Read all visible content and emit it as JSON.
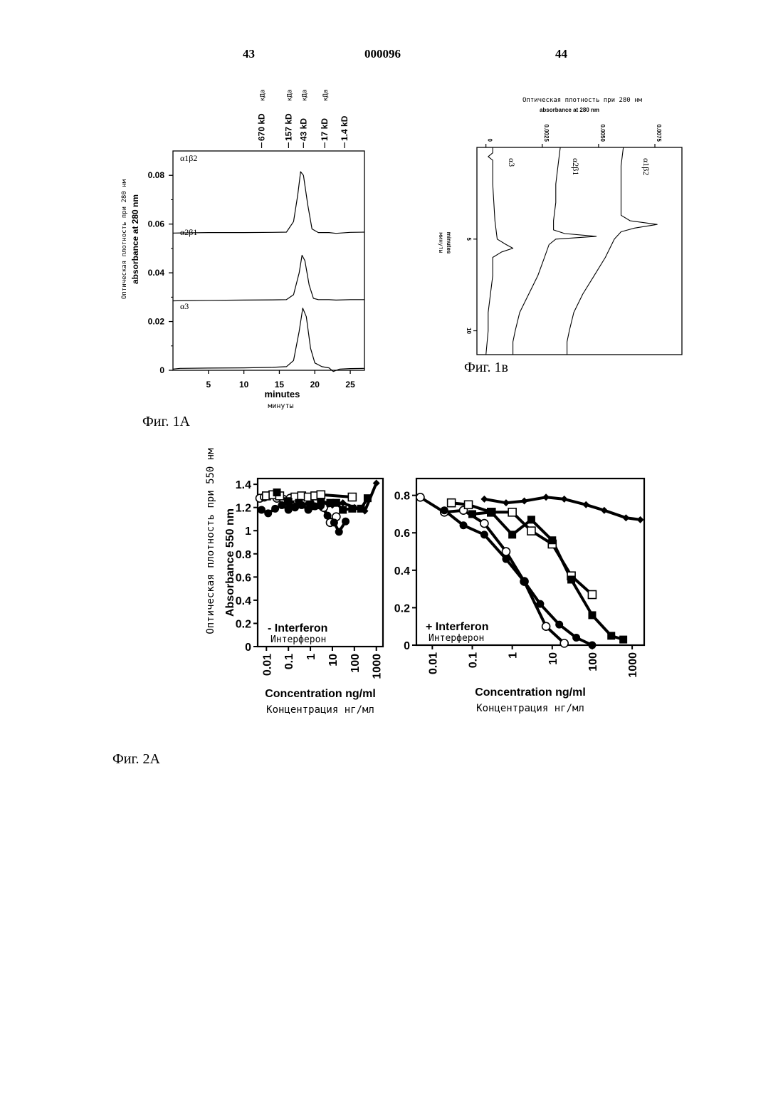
{
  "header": {
    "left_page": "43",
    "patent_number": "000096",
    "right_page": "44"
  },
  "captions": {
    "fig1a": "Фиг. 1А",
    "fig1b": "Фиг. 1в",
    "fig2a": "Фиг. 2А"
  },
  "chart_data": [
    {
      "id": "fig1a",
      "type": "line",
      "ylabel_ru": "Оптическая плотность при 280 нм",
      "ylabel": "absorbance at 280 nm",
      "xlabel": "minutes",
      "xlabel_ru": "минуты",
      "xlim": [
        0,
        27
      ],
      "ylim": [
        0,
        0.09
      ],
      "xticks": [
        5,
        10,
        15,
        20,
        25
      ],
      "yticks": [
        0,
        0.02,
        0.04,
        0.06,
        0.08
      ],
      "ytick_labels": [
        "0",
        "0.02",
        "0.04",
        "0.06",
        "0.08"
      ],
      "markers": [
        {
          "label": "670 kD",
          "label_ru": "кДа",
          "x": 12.5
        },
        {
          "label": "157 kD",
          "label_ru": "кДа",
          "x": 16.3
        },
        {
          "label": "43 kD",
          "label_ru": "кДа",
          "x": 18.4
        },
        {
          "label": "17 kD",
          "label_ru": "кДа",
          "x": 21.4
        },
        {
          "label": "1.4 kD",
          "x": 24.2
        }
      ],
      "series": [
        {
          "name": "α1β2",
          "x": [
            0,
            2,
            5,
            10,
            14,
            16,
            17,
            17.6,
            18,
            18.4,
            19,
            19.6,
            20.5,
            22,
            23,
            25,
            27
          ],
          "y": [
            0.0563,
            0.0564,
            0.0565,
            0.0565,
            0.0566,
            0.0567,
            0.061,
            0.072,
            0.0815,
            0.08,
            0.068,
            0.058,
            0.0565,
            0.0565,
            0.0562,
            0.0566,
            0.0567
          ]
        },
        {
          "name": "α2β1",
          "x": [
            0,
            2,
            5,
            10,
            14,
            16,
            17,
            17.8,
            18.2,
            18.6,
            19.2,
            19.8,
            20.5,
            22,
            23,
            25,
            27
          ],
          "y": [
            0.0285,
            0.0286,
            0.0287,
            0.0288,
            0.0289,
            0.029,
            0.031,
            0.04,
            0.0472,
            0.045,
            0.035,
            0.0295,
            0.029,
            0.029,
            0.0288,
            0.029,
            0.029
          ]
        },
        {
          "name": "α3",
          "x": [
            0,
            1,
            5,
            10,
            14,
            16,
            17,
            17.8,
            18.3,
            18.8,
            19.4,
            20,
            21,
            22,
            22.6,
            23.5,
            25,
            27
          ],
          "y": [
            0.0005,
            0.0008,
            0.0009,
            0.001,
            0.0012,
            0.0015,
            0.004,
            0.016,
            0.0255,
            0.022,
            0.009,
            0.003,
            0.0015,
            0.001,
            -0.0005,
            0.0005,
            0.0007,
            0.0008
          ]
        }
      ]
    },
    {
      "id": "fig1b",
      "type": "line",
      "ylabel_ru": "Оптическая плотность при 280 нм",
      "ylabel": "absorbance at 280 nm",
      "xlabel": "minutes",
      "xlabel_ru": "минуты",
      "xlim": [
        0,
        11.3
      ],
      "ylim": [
        -0.0004,
        0.0087
      ],
      "xticks": [
        5,
        10
      ],
      "yticks": [
        0,
        0.0025,
        0.005,
        0.0075
      ],
      "ytick_labels": [
        "0",
        "0.0025",
        "0.0050",
        "0.0075"
      ],
      "series": [
        {
          "name": "α3",
          "x": [
            0,
            0.3,
            0.5,
            0.7,
            1,
            2,
            4,
            5,
            5.3,
            5.5,
            5.7,
            6,
            7,
            8,
            9,
            10,
            11.3
          ],
          "y": [
            0.0003,
            0.0003,
            0.0001,
            0.0003,
            0.0003,
            0.0003,
            0.0004,
            0.0005,
            0.0009,
            0.0012,
            0.0007,
            0.0003,
            0.0003,
            0.0002,
            0.0001,
            0.0001,
            0
          ]
        },
        {
          "name": "α2β1",
          "x": [
            0,
            1,
            2,
            3,
            4,
            4.5,
            4.7,
            4.85,
            5,
            5.3,
            6,
            7,
            8,
            9,
            10,
            10.6,
            11.3
          ],
          "y": [
            0.0033,
            0.0032,
            0.0031,
            0.0031,
            0.003,
            0.003,
            0.0035,
            0.0049,
            0.0031,
            0.0028,
            0.0026,
            0.0023,
            0.0019,
            0.0015,
            0.0013,
            0.0012,
            0.0012
          ]
        },
        {
          "name": "α1β2",
          "x": [
            0,
            1,
            2,
            3,
            3.7,
            4,
            4.2,
            4.4,
            4.6,
            5,
            6,
            7,
            8,
            9,
            10,
            10.6,
            11.3
          ],
          "y": [
            0.0061,
            0.006,
            0.006,
            0.006,
            0.006,
            0.0064,
            0.0076,
            0.0066,
            0.006,
            0.0057,
            0.0053,
            0.0048,
            0.0043,
            0.0039,
            0.0037,
            0.0036,
            0.0036
          ]
        }
      ]
    },
    {
      "id": "fig2a-left",
      "type": "line",
      "log_x": true,
      "xlim": [
        0.004,
        2000
      ],
      "ylim": [
        0,
        1.45
      ],
      "xticks": [
        0.01,
        0.1,
        1,
        10,
        100,
        1000
      ],
      "xtick_labels": [
        "0.01",
        "0.1",
        "1",
        "10",
        "100",
        "1000"
      ],
      "yticks": [
        0,
        0.2,
        0.4,
        0.6,
        0.8,
        1,
        1.2,
        1.4
      ],
      "ytick_labels": [
        "0",
        "0.2",
        "0.4",
        "0.6",
        "0.8",
        "1",
        "1.2",
        "1.4"
      ],
      "ylabel": "Absorbance 550 nm",
      "ylabel_ru": "Оптическая плотность при 550 нм",
      "xlabel": "Concentration ng/ml",
      "xlabel_ru": "Концентрация нг/мл",
      "annotation": "- Interferon",
      "annotation_ru": "Интерферон",
      "series": [
        {
          "marker": "open-circle",
          "x": [
            0.005,
            0.008,
            0.016,
            0.03,
            0.06,
            0.12,
            0.25,
            0.5,
            1,
            2,
            4,
            8,
            15
          ],
          "y": [
            1.28,
            1.29,
            1.31,
            1.28,
            1.27,
            1.28,
            1.26,
            1.27,
            1.28,
            1.26,
            1.2,
            1.07,
            1.12
          ]
        },
        {
          "marker": "filled-circle",
          "x": [
            0.006,
            0.012,
            0.025,
            0.05,
            0.1,
            0.2,
            0.4,
            0.8,
            1.6,
            3,
            6,
            12,
            20,
            40
          ],
          "y": [
            1.18,
            1.15,
            1.19,
            1.22,
            1.18,
            1.2,
            1.22,
            1.18,
            1.21,
            1.22,
            1.13,
            1.07,
            0.99,
            1.08
          ]
        },
        {
          "marker": "open-square",
          "x": [
            0.01,
            0.02,
            0.04,
            0.1,
            0.2,
            0.4,
            0.8,
            1.6,
            3,
            80
          ],
          "y": [
            1.3,
            1.31,
            1.3,
            1.25,
            1.29,
            1.3,
            1.29,
            1.3,
            1.31,
            1.29
          ]
        },
        {
          "marker": "filled-square",
          "x": [
            0.03,
            0.1,
            0.3,
            1,
            3,
            8,
            15,
            30,
            80,
            200,
            400
          ],
          "y": [
            1.33,
            1.25,
            1.24,
            1.22,
            1.25,
            1.24,
            1.24,
            1.18,
            1.19,
            1.19,
            1.28
          ]
        },
        {
          "marker": "filled-diamond",
          "x": [
            0.1,
            0.3,
            1,
            3,
            10,
            30,
            100,
            300,
            1000
          ],
          "y": [
            1.2,
            1.22,
            1.19,
            1.2,
            1.22,
            1.24,
            1.2,
            1.17,
            1.41
          ]
        }
      ]
    },
    {
      "id": "fig2a-right",
      "type": "line",
      "log_x": true,
      "xlim": [
        0.004,
        2000
      ],
      "ylim": [
        0,
        0.89
      ],
      "xticks": [
        0.01,
        0.1,
        1,
        10,
        100,
        1000
      ],
      "xtick_labels": [
        "0.01",
        "0.1",
        "1",
        "10",
        "100",
        "1000"
      ],
      "yticks": [
        0,
        0.2,
        0.4,
        0.6,
        0.8
      ],
      "ytick_labels": [
        "0",
        "0.2",
        "0.4",
        "0.6",
        "0.8"
      ],
      "xlabel": "Concentration ng/ml",
      "xlabel_ru": "Концентрация нг/мл",
      "annotation": "+ Interferon",
      "annotation_ru": "Интерферон",
      "series": [
        {
          "marker": "open-circle",
          "x": [
            0.005,
            0.02,
            0.06,
            0.2,
            0.7,
            2,
            7,
            20
          ],
          "y": [
            0.79,
            0.71,
            0.72,
            0.65,
            0.5,
            0.34,
            0.1,
            0.01
          ]
        },
        {
          "marker": "filled-circle",
          "x": [
            0.02,
            0.06,
            0.2,
            0.7,
            2,
            5,
            15,
            40,
            100
          ],
          "y": [
            0.72,
            0.64,
            0.59,
            0.46,
            0.34,
            0.22,
            0.11,
            0.04,
            0
          ]
        },
        {
          "marker": "open-square",
          "x": [
            0.03,
            0.08,
            0.3,
            1,
            3,
            10,
            30,
            100
          ],
          "y": [
            0.76,
            0.75,
            0.71,
            0.71,
            0.61,
            0.54,
            0.37,
            0.27
          ]
        },
        {
          "marker": "filled-square",
          "x": [
            0.1,
            0.3,
            1,
            3,
            10,
            30,
            100,
            300,
            600
          ],
          "y": [
            0.7,
            0.71,
            0.59,
            0.67,
            0.56,
            0.35,
            0.16,
            0.05,
            0.03
          ]
        },
        {
          "marker": "filled-diamond",
          "x": [
            0.2,
            0.7,
            2,
            7,
            20,
            70,
            200,
            700,
            1600
          ],
          "y": [
            0.78,
            0.76,
            0.77,
            0.79,
            0.78,
            0.75,
            0.72,
            0.68,
            0.67
          ]
        }
      ]
    }
  ]
}
